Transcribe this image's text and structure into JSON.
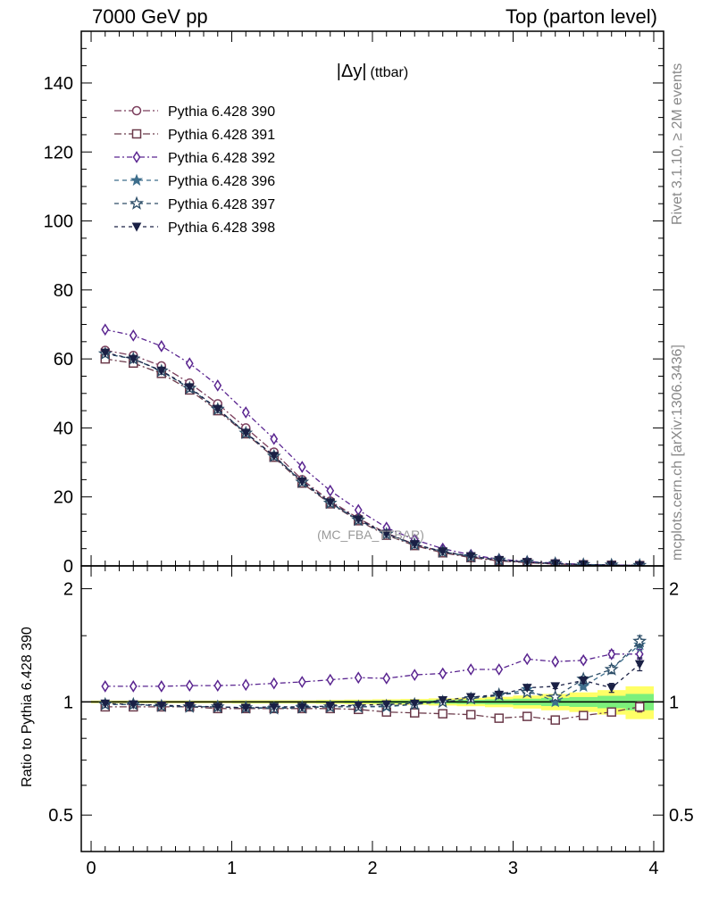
{
  "header": {
    "left": "7000 GeV pp",
    "right": "Top (parton level)"
  },
  "side_labels": {
    "rivet": "Rivet 3.1.10, ≥ 2M events",
    "mcplots": "mcplots.cern.ch [arXiv:1306.3436]"
  },
  "chart_data": {
    "type": "line",
    "title": "|Δy| (ttbar)",
    "watermark": "(MC_FBA_TTBAR)",
    "xlabel": "",
    "ylabel": "",
    "ratio_ylabel": "Ratio to Pythia 6.428 390",
    "xlim": [
      -0.07,
      4.07
    ],
    "ylim": [
      0,
      155
    ],
    "ratio_ylim": [
      0.4,
      2.3
    ],
    "ratio_log": true,
    "x_ticks": [
      "0",
      "1",
      "2",
      "3",
      "4"
    ],
    "y_ticks": [
      "0",
      "20",
      "40",
      "60",
      "80",
      "100",
      "120",
      "140"
    ],
    "ratio_ticks": [
      "0.5",
      "1",
      "2"
    ],
    "legend_position": "top-left",
    "x": [
      0.1,
      0.3,
      0.5,
      0.7,
      0.9,
      1.1,
      1.3,
      1.5,
      1.7,
      1.9,
      2.1,
      2.3,
      2.5,
      2.7,
      2.9,
      3.1,
      3.3,
      3.5,
      3.7,
      3.9
    ],
    "series": [
      {
        "name": "Pythia 6.428 390",
        "color": "#7b3e5c",
        "marker": "circle-open",
        "dash": "8,3,2,3",
        "values": [
          62.5,
          61,
          58,
          53,
          47,
          40,
          33,
          25,
          18.8,
          13.8,
          9.5,
          6.3,
          4.1,
          2.6,
          1.6,
          1.0,
          0.6,
          0.35,
          0.2,
          0.1
        ]
      },
      {
        "name": "Pythia 6.428 391",
        "color": "#6b3a4a",
        "marker": "square-open",
        "dash": "8,3,2,3",
        "values": [
          60,
          58.8,
          55.8,
          51,
          45,
          38.3,
          31.5,
          24,
          18,
          13.1,
          8.9,
          5.9,
          3.8,
          2.4,
          1.45,
          0.92,
          0.55,
          0.32,
          0.19,
          0.1
        ]
      },
      {
        "name": "Pythia 6.428 392",
        "color": "#5a2590",
        "marker": "diamond-open",
        "dash": "6,3,2,3",
        "values": [
          68.5,
          66.8,
          63.7,
          58.7,
          52.3,
          44.5,
          36.8,
          28.7,
          21.8,
          16.2,
          11.1,
          7.6,
          5.0,
          3.2,
          1.95,
          1.3,
          0.8,
          0.45,
          0.27,
          0.15
        ]
      },
      {
        "name": "Pythia 6.428 396",
        "color": "#3d6e8c",
        "marker": "star-filled",
        "dash": "5,4",
        "values": [
          61.5,
          60,
          56.5,
          51.5,
          45.5,
          38.5,
          31.8,
          24.3,
          18.2,
          13.3,
          9.2,
          6.2,
          4.1,
          2.7,
          1.7,
          1.1,
          0.65,
          0.38,
          0.24,
          0.14
        ]
      },
      {
        "name": "Pythia 6.428 397",
        "color": "#2d4e68",
        "marker": "star-open",
        "dash": "5,4",
        "values": [
          61.5,
          60,
          56.5,
          51.5,
          45.4,
          38.5,
          31.8,
          24.3,
          18.2,
          13.3,
          9.2,
          6.2,
          4.1,
          2.7,
          1.7,
          1.1,
          0.66,
          0.39,
          0.25,
          0.15
        ]
      },
      {
        "name": "Pythia 6.428 398",
        "color": "#1a2045",
        "marker": "triangle-down-filled",
        "dash": "4,4",
        "values": [
          61.8,
          60,
          56.6,
          51.8,
          45.5,
          38.6,
          31.9,
          24.5,
          18.4,
          13.5,
          9.3,
          6.3,
          4.2,
          2.8,
          1.7,
          1.1,
          0.67,
          0.4,
          0.22,
          0.13
        ]
      }
    ],
    "ratio_series": [
      {
        "name": "Pythia 6.428 391",
        "values": [
          0.97,
          0.97,
          0.97,
          0.97,
          0.96,
          0.96,
          0.96,
          0.96,
          0.96,
          0.955,
          0.94,
          0.935,
          0.93,
          0.925,
          0.905,
          0.915,
          0.895,
          0.92,
          0.94,
          0.97
        ],
        "errors": [
          0.004,
          0.004,
          0.004,
          0.004,
          0.004,
          0.005,
          0.005,
          0.005,
          0.006,
          0.007,
          0.008,
          0.009,
          0.01,
          0.011,
          0.012,
          0.013,
          0.015,
          0.018,
          0.022,
          0.03
        ]
      },
      {
        "name": "Pythia 6.428 392",
        "values": [
          1.1,
          1.1,
          1.1,
          1.105,
          1.105,
          1.11,
          1.12,
          1.13,
          1.145,
          1.16,
          1.155,
          1.18,
          1.19,
          1.22,
          1.22,
          1.3,
          1.28,
          1.29,
          1.34,
          1.34
        ],
        "errors": [
          0.004,
          0.004,
          0.004,
          0.004,
          0.004,
          0.005,
          0.005,
          0.005,
          0.006,
          0.007,
          0.008,
          0.009,
          0.01,
          0.011,
          0.012,
          0.013,
          0.015,
          0.02,
          0.03,
          0.04
        ]
      },
      {
        "name": "Pythia 6.428 396",
        "values": [
          0.985,
          0.985,
          0.975,
          0.97,
          0.97,
          0.965,
          0.965,
          0.97,
          0.97,
          0.97,
          0.97,
          0.985,
          1.0,
          1.02,
          1.04,
          1.08,
          1.0,
          1.1,
          1.22,
          1.42
        ],
        "errors": [
          0.004,
          0.004,
          0.004,
          0.004,
          0.004,
          0.005,
          0.005,
          0.005,
          0.006,
          0.007,
          0.008,
          0.009,
          0.01,
          0.011,
          0.012,
          0.013,
          0.015,
          0.02,
          0.03,
          0.05
        ]
      },
      {
        "name": "Pythia 6.428 397",
        "values": [
          0.985,
          0.985,
          0.975,
          0.97,
          0.97,
          0.965,
          0.96,
          0.965,
          0.97,
          0.97,
          0.975,
          0.985,
          1.0,
          1.02,
          1.045,
          1.06,
          1.03,
          1.15,
          1.22,
          1.45
        ],
        "errors": [
          0.004,
          0.004,
          0.004,
          0.004,
          0.004,
          0.005,
          0.005,
          0.005,
          0.006,
          0.007,
          0.008,
          0.009,
          0.01,
          0.011,
          0.012,
          0.013,
          0.015,
          0.02,
          0.03,
          0.05
        ]
      },
      {
        "name": "Pythia 6.428 398",
        "values": [
          0.99,
          0.985,
          0.98,
          0.975,
          0.97,
          0.965,
          0.97,
          0.97,
          0.975,
          0.98,
          0.985,
          0.99,
          1.01,
          1.03,
          1.045,
          1.09,
          1.1,
          1.14,
          1.09,
          1.26
        ],
        "errors": [
          0.004,
          0.004,
          0.004,
          0.004,
          0.004,
          0.005,
          0.005,
          0.005,
          0.006,
          0.007,
          0.008,
          0.009,
          0.01,
          0.011,
          0.012,
          0.013,
          0.015,
          0.02,
          0.03,
          0.05
        ]
      }
    ],
    "uncertainty_bands": {
      "colors": {
        "inner": "#7cf07c",
        "outer": "#ffff66"
      },
      "inner": [
        0.004,
        0.004,
        0.004,
        0.004,
        0.004,
        0.005,
        0.005,
        0.005,
        0.006,
        0.007,
        0.008,
        0.009,
        0.011,
        0.013,
        0.016,
        0.02,
        0.025,
        0.03,
        0.038,
        0.05
      ],
      "outer": [
        0.008,
        0.008,
        0.008,
        0.008,
        0.008,
        0.01,
        0.01,
        0.01,
        0.012,
        0.014,
        0.016,
        0.018,
        0.022,
        0.026,
        0.032,
        0.04,
        0.05,
        0.06,
        0.075,
        0.1
      ]
    }
  }
}
